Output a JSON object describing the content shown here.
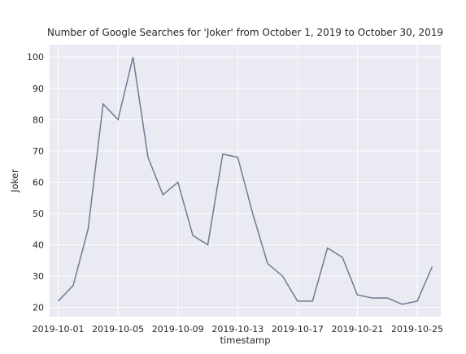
{
  "chart_data": {
    "type": "line",
    "title": "Number of Google Searches for 'Joker' from October 1, 2019 to October 30, 2019",
    "xlabel": "timestamp",
    "ylabel": "Joker",
    "x": [
      "2019-10-01",
      "2019-10-02",
      "2019-10-03",
      "2019-10-04",
      "2019-10-05",
      "2019-10-06",
      "2019-10-07",
      "2019-10-08",
      "2019-10-09",
      "2019-10-10",
      "2019-10-11",
      "2019-10-12",
      "2019-10-13",
      "2019-10-14",
      "2019-10-15",
      "2019-10-16",
      "2019-10-17",
      "2019-10-18",
      "2019-10-19",
      "2019-10-20",
      "2019-10-21",
      "2019-10-22",
      "2019-10-23",
      "2019-10-24",
      "2019-10-25",
      "2019-10-26"
    ],
    "series": [
      {
        "values": [
          22,
          27,
          45,
          85,
          80,
          100,
          68,
          56,
          60,
          43,
          40,
          69,
          68,
          50,
          34,
          30,
          22,
          22,
          39,
          36,
          24,
          23,
          23,
          21,
          22,
          33
        ]
      }
    ],
    "x_tick_labels": [
      "2019-10-01",
      "2019-10-05",
      "2019-10-09",
      "2019-10-13",
      "2019-10-17",
      "2019-10-21",
      "2019-10-25"
    ],
    "y_ticks": [
      20,
      30,
      40,
      50,
      60,
      70,
      80,
      90,
      100
    ],
    "ylim": [
      17.05,
      103.95
    ],
    "grid": true,
    "colors": {
      "background": "#eaeaf2",
      "grid": "#ffffff",
      "line": "#6d7b93"
    }
  }
}
